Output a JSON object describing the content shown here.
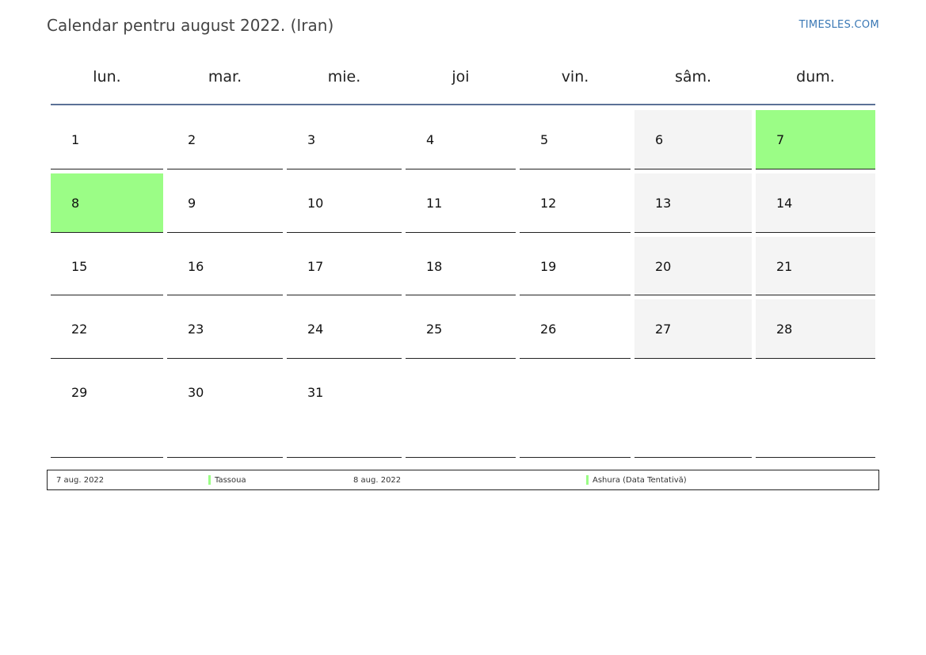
{
  "header": {
    "title": "Calendar pentru august 2022. (Iran)",
    "brand": "TIMESLES.COM"
  },
  "weekdays": [
    "lun.",
    "mar.",
    "mie.",
    "joi",
    "vin.",
    "sâm.",
    "dum."
  ],
  "colors": {
    "holiday": "#9bfd86",
    "weekend": "#f4f4f4",
    "header_rule": "#5b7196",
    "brand": "#3a78b5"
  },
  "weeks": [
    [
      {
        "day": "1",
        "type": "normal"
      },
      {
        "day": "2",
        "type": "normal"
      },
      {
        "day": "3",
        "type": "normal"
      },
      {
        "day": "4",
        "type": "normal"
      },
      {
        "day": "5",
        "type": "normal"
      },
      {
        "day": "6",
        "type": "weekend"
      },
      {
        "day": "7",
        "type": "holiday"
      }
    ],
    [
      {
        "day": "8",
        "type": "holiday"
      },
      {
        "day": "9",
        "type": "normal"
      },
      {
        "day": "10",
        "type": "normal"
      },
      {
        "day": "11",
        "type": "normal"
      },
      {
        "day": "12",
        "type": "normal"
      },
      {
        "day": "13",
        "type": "weekend"
      },
      {
        "day": "14",
        "type": "weekend"
      }
    ],
    [
      {
        "day": "15",
        "type": "normal"
      },
      {
        "day": "16",
        "type": "normal"
      },
      {
        "day": "17",
        "type": "normal"
      },
      {
        "day": "18",
        "type": "normal"
      },
      {
        "day": "19",
        "type": "normal"
      },
      {
        "day": "20",
        "type": "weekend"
      },
      {
        "day": "21",
        "type": "weekend"
      }
    ],
    [
      {
        "day": "22",
        "type": "normal"
      },
      {
        "day": "23",
        "type": "normal"
      },
      {
        "day": "24",
        "type": "normal"
      },
      {
        "day": "25",
        "type": "normal"
      },
      {
        "day": "26",
        "type": "normal"
      },
      {
        "day": "27",
        "type": "weekend"
      },
      {
        "day": "28",
        "type": "weekend"
      }
    ],
    [
      {
        "day": "29",
        "type": "normal"
      },
      {
        "day": "30",
        "type": "normal"
      },
      {
        "day": "31",
        "type": "normal"
      },
      {
        "day": "",
        "type": "empty"
      },
      {
        "day": "",
        "type": "empty"
      },
      {
        "day": "",
        "type": "empty"
      },
      {
        "day": "",
        "type": "empty"
      }
    ]
  ],
  "legend": [
    {
      "date": "7 aug. 2022",
      "name": "Tassoua"
    },
    {
      "date": "8 aug. 2022",
      "name": "Ashura (Data Tentativă)"
    }
  ]
}
